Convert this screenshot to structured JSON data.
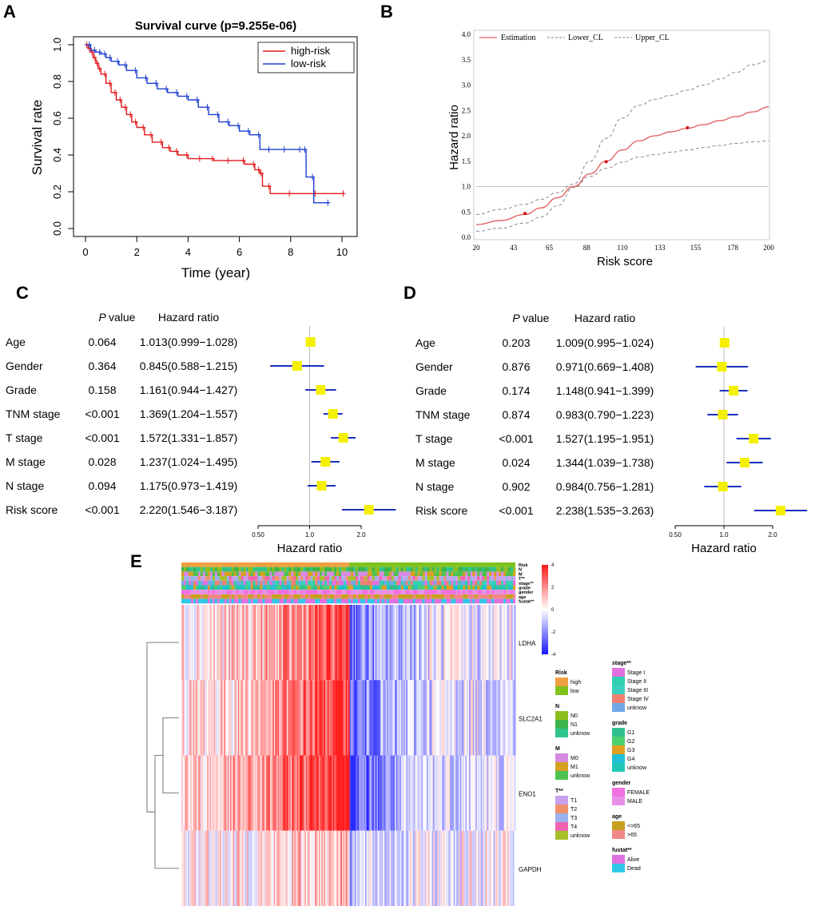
{
  "panel_labels": [
    "A",
    "B",
    "C",
    "D",
    "E"
  ],
  "chart_data": [
    {
      "panel": "A",
      "type": "line",
      "title": "Survival curve (p=9.255e-06)",
      "xlabel": "Time (year)",
      "ylabel": "Survival rate",
      "xlim": [
        0,
        10
      ],
      "ylim": [
        0,
        1
      ],
      "xticks": [
        "0",
        "2",
        "4",
        "6",
        "8",
        "10"
      ],
      "yticks": [
        "0.0",
        "0.2",
        "0.4",
        "0.6",
        "0.8",
        "1.0"
      ],
      "legend": [
        "high-risk",
        "low-risk"
      ],
      "legend_position": "top-right",
      "series": [
        {
          "name": "high-risk",
          "color": "#e31a1c",
          "x": [
            0,
            0.1,
            0.2,
            0.3,
            0.4,
            0.5,
            0.6,
            0.8,
            1.0,
            1.2,
            1.4,
            1.6,
            1.8,
            2.0,
            2.3,
            2.6,
            3.0,
            3.3,
            3.6,
            4.0,
            4.5,
            5.0,
            5.6,
            6.2,
            6.6,
            6.8,
            6.9,
            7.2,
            8.0,
            9.0,
            10.1
          ],
          "y": [
            1.0,
            0.98,
            0.96,
            0.93,
            0.9,
            0.87,
            0.84,
            0.79,
            0.74,
            0.7,
            0.66,
            0.62,
            0.58,
            0.55,
            0.51,
            0.47,
            0.44,
            0.42,
            0.4,
            0.38,
            0.38,
            0.37,
            0.37,
            0.35,
            0.32,
            0.3,
            0.23,
            0.19,
            0.19,
            0.19,
            0.19
          ]
        },
        {
          "name": "low-risk",
          "color": "#1f3fd1",
          "x": [
            0,
            0.2,
            0.4,
            0.6,
            0.8,
            1.0,
            1.3,
            1.6,
            2.0,
            2.4,
            2.8,
            3.2,
            3.6,
            4.0,
            4.4,
            4.8,
            5.2,
            5.6,
            6.0,
            6.4,
            6.8,
            7.2,
            7.8,
            8.4,
            8.6,
            8.9,
            9.5
          ],
          "y": [
            1.0,
            0.97,
            0.96,
            0.95,
            0.93,
            0.91,
            0.89,
            0.86,
            0.82,
            0.79,
            0.76,
            0.74,
            0.72,
            0.7,
            0.66,
            0.62,
            0.58,
            0.56,
            0.53,
            0.51,
            0.43,
            0.43,
            0.43,
            0.43,
            0.28,
            0.14,
            0.14
          ]
        }
      ]
    },
    {
      "panel": "B",
      "type": "line",
      "title": "",
      "xlabel": "Risk score",
      "ylabel": "Hazard ratio",
      "xlim": [
        20,
        200
      ],
      "ylim": [
        0,
        4
      ],
      "xticks": [
        "20",
        "43",
        "65",
        "88",
        "110",
        "133",
        "155",
        "178",
        "200"
      ],
      "yticks": [
        "0.0",
        "0.5",
        "1.0",
        "1.5",
        "2.0",
        "2.5",
        "3.0",
        "3.5",
        "4.0"
      ],
      "legend": [
        "Estimation",
        "Lower_CL",
        "Upper_CL"
      ],
      "legend_position": "top-left",
      "reference_line_y": 1.0,
      "series": [
        {
          "name": "Estimation",
          "color": "#e05a5a",
          "x": [
            20,
            35,
            50,
            60,
            70,
            80,
            90,
            100,
            110,
            120,
            130,
            140,
            150,
            160,
            170,
            180,
            190,
            200
          ],
          "y": [
            0.25,
            0.33,
            0.45,
            0.58,
            0.78,
            1.0,
            1.25,
            1.5,
            1.72,
            1.9,
            2.0,
            2.08,
            2.15,
            2.22,
            2.3,
            2.38,
            2.47,
            2.57
          ]
        },
        {
          "name": "Lower_CL",
          "color": "#888888",
          "x": [
            20,
            35,
            50,
            60,
            70,
            80,
            90,
            100,
            110,
            120,
            130,
            140,
            150,
            160,
            170,
            180,
            190,
            200
          ],
          "y": [
            0.12,
            0.18,
            0.28,
            0.4,
            0.62,
            0.98,
            1.2,
            1.36,
            1.48,
            1.58,
            1.63,
            1.68,
            1.72,
            1.77,
            1.81,
            1.85,
            1.88,
            1.9
          ]
        },
        {
          "name": "Upper_CL",
          "color": "#888888",
          "x": [
            20,
            35,
            50,
            60,
            70,
            80,
            90,
            100,
            110,
            120,
            130,
            140,
            150,
            160,
            170,
            180,
            190,
            200
          ],
          "y": [
            0.45,
            0.55,
            0.65,
            0.75,
            0.88,
            1.05,
            1.5,
            1.95,
            2.35,
            2.6,
            2.72,
            2.8,
            2.9,
            3.0,
            3.12,
            3.25,
            3.4,
            3.48
          ]
        }
      ],
      "markers": [
        {
          "x": 50,
          "y": 0.47
        },
        {
          "x": 100,
          "y": 1.49
        },
        {
          "x": 150,
          "y": 2.16
        }
      ]
    },
    {
      "panel": "C",
      "type": "forest",
      "col_headers": [
        "P value",
        "Hazard ratio"
      ],
      "xlabel": "Hazard ratio",
      "xticks": [
        "0.50",
        "1.0",
        "2.0"
      ],
      "reference": 1.0,
      "rows": [
        {
          "label": "Age",
          "p": "0.064",
          "hr_text": "1.013(0.999−1.028)",
          "hr": 1.013,
          "lo": 0.999,
          "hi": 1.028
        },
        {
          "label": "Gender",
          "p": "0.364",
          "hr_text": "0.845(0.588−1.215)",
          "hr": 0.845,
          "lo": 0.588,
          "hi": 1.215
        },
        {
          "label": "Grade",
          "p": "0.158",
          "hr_text": "1.161(0.944−1.427)",
          "hr": 1.161,
          "lo": 0.944,
          "hi": 1.427
        },
        {
          "label": "TNM stage",
          "p": "<0.001",
          "hr_text": "1.369(1.204−1.557)",
          "hr": 1.369,
          "lo": 1.204,
          "hi": 1.557
        },
        {
          "label": "T stage",
          "p": "<0.001",
          "hr_text": "1.572(1.331−1.857)",
          "hr": 1.572,
          "lo": 1.331,
          "hi": 1.857
        },
        {
          "label": "M stage",
          "p": "0.028",
          "hr_text": "1.237(1.024−1.495)",
          "hr": 1.237,
          "lo": 1.024,
          "hi": 1.495
        },
        {
          "label": "N stage",
          "p": "0.094",
          "hr_text": "1.175(0.973−1.419)",
          "hr": 1.175,
          "lo": 0.973,
          "hi": 1.419
        },
        {
          "label": "Risk score",
          "p": "<0.001",
          "hr_text": "2.220(1.546−3.187)",
          "hr": 2.22,
          "lo": 1.546,
          "hi": 3.187
        }
      ]
    },
    {
      "panel": "D",
      "type": "forest",
      "col_headers": [
        "P value",
        "Hazard ratio"
      ],
      "xlabel": "Hazard ratio",
      "xticks": [
        "0.50",
        "1.0",
        "2.0"
      ],
      "reference": 1.0,
      "rows": [
        {
          "label": "Age",
          "p": "0.203",
          "hr_text": "1.009(0.995−1.024)",
          "hr": 1.009,
          "lo": 0.995,
          "hi": 1.024
        },
        {
          "label": "Gender",
          "p": "0.876",
          "hr_text": "0.971(0.669−1.408)",
          "hr": 0.971,
          "lo": 0.669,
          "hi": 1.408
        },
        {
          "label": "Grade",
          "p": "0.174",
          "hr_text": "1.148(0.941−1.399)",
          "hr": 1.148,
          "lo": 0.941,
          "hi": 1.399
        },
        {
          "label": "TNM stage",
          "p": "0.874",
          "hr_text": "0.983(0.790−1.223)",
          "hr": 0.983,
          "lo": 0.79,
          "hi": 1.223
        },
        {
          "label": "T stage",
          "p": "<0.001",
          "hr_text": "1.527(1.195−1.951)",
          "hr": 1.527,
          "lo": 1.195,
          "hi": 1.951
        },
        {
          "label": "M stage",
          "p": "0.024",
          "hr_text": "1.344(1.039−1.738)",
          "hr": 1.344,
          "lo": 1.039,
          "hi": 1.738
        },
        {
          "label": "N stage",
          "p": "0.902",
          "hr_text": "0.984(0.756−1.281)",
          "hr": 0.984,
          "lo": 0.756,
          "hi": 1.281
        },
        {
          "label": "Risk score",
          "p": "<0.001",
          "hr_text": "2.238(1.535−3.263)",
          "hr": 2.238,
          "lo": 1.535,
          "hi": 3.263
        }
      ]
    },
    {
      "panel": "E",
      "type": "heatmap",
      "rows": [
        "LDHA",
        "SLC2A1",
        "ENO1",
        "GAPDH"
      ],
      "annotation_tracks": [
        "Risk",
        "N",
        "M",
        "T**",
        "stage**",
        "grade",
        "gender",
        "age",
        "fustat**"
      ],
      "colorbar": {
        "ticks": [
          "4",
          "2",
          "0",
          "-2",
          "-4"
        ],
        "range": [
          -4,
          4
        ],
        "colors": [
          "#1a1aff",
          "#ffffff",
          "#ff1a1a"
        ]
      },
      "legend_left": [
        {
          "title": "Risk",
          "items": [
            {
              "label": "high",
              "color": "#f0a040"
            },
            {
              "label": "low",
              "color": "#7fc31c"
            }
          ]
        },
        {
          "title": "N",
          "items": [
            {
              "label": "N0",
              "color": "#8fbf1f"
            },
            {
              "label": "N1",
              "color": "#3cb44b"
            },
            {
              "label": "unknow",
              "color": "#2fc48a"
            }
          ]
        },
        {
          "title": "M",
          "items": [
            {
              "label": "M0",
              "color": "#d68be0"
            },
            {
              "label": "M1",
              "color": "#d4a020"
            },
            {
              "label": "unknow",
              "color": "#4ec24e"
            }
          ]
        },
        {
          "title": "T**",
          "items": [
            {
              "label": "T1",
              "color": "#c9a0ec"
            },
            {
              "label": "T2",
              "color": "#f0906a"
            },
            {
              "label": "T3",
              "color": "#9cb2ee"
            },
            {
              "label": "T4",
              "color": "#f064b0"
            },
            {
              "label": "unknow",
              "color": "#a8bf2a"
            }
          ]
        }
      ],
      "legend_right": [
        {
          "title": "stage**",
          "items": [
            {
              "label": "Stage I",
              "color": "#e070e0"
            },
            {
              "label": "Stage II",
              "color": "#30d0b0"
            },
            {
              "label": "Stage III",
              "color": "#3cd0c0"
            },
            {
              "label": "Stage IV",
              "color": "#f08070"
            },
            {
              "label": "unknow",
              "color": "#70a8e8"
            }
          ]
        },
        {
          "title": "grade",
          "items": [
            {
              "label": "G1",
              "color": "#30c090"
            },
            {
              "label": "G2",
              "color": "#4cd070"
            },
            {
              "label": "G3",
              "color": "#e0a020"
            },
            {
              "label": "G4",
              "color": "#20c0d8"
            },
            {
              "label": "unknow",
              "color": "#20c8b8"
            }
          ]
        },
        {
          "title": "gender",
          "items": [
            {
              "label": "FEMALE",
              "color": "#f070e0"
            },
            {
              "label": "MALE",
              "color": "#e890e8"
            }
          ]
        },
        {
          "title": "age",
          "items": [
            {
              "label": "<=65",
              "color": "#c8a020"
            },
            {
              "label": ">65",
              "color": "#f08888"
            }
          ]
        },
        {
          "title": "fustat**",
          "items": [
            {
              "label": "Alive",
              "color": "#e070e0"
            },
            {
              "label": "Dead",
              "color": "#30c8e8"
            }
          ]
        }
      ]
    }
  ]
}
